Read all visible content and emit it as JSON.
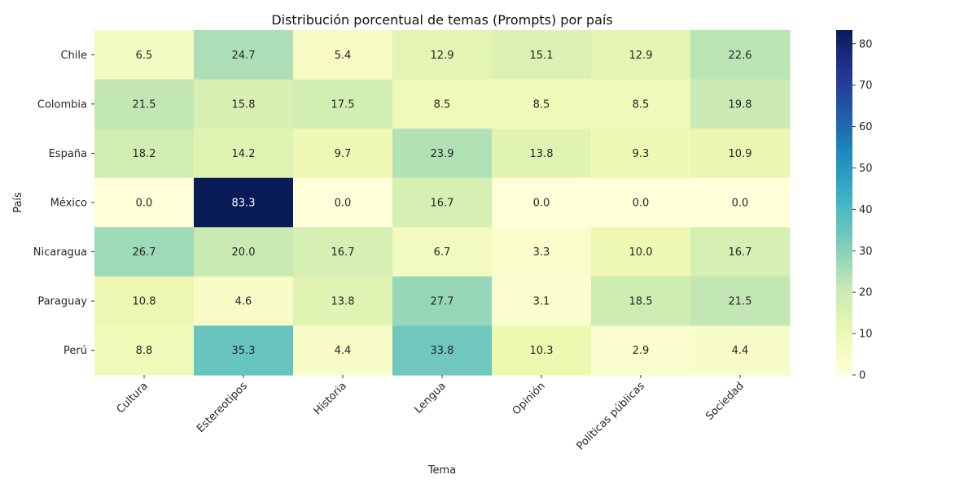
{
  "chart_data": {
    "type": "heatmap",
    "title": "Distribución porcentual de temas (Prompts) por país",
    "xlabel": "Tema",
    "ylabel": "País",
    "columns": [
      "Cultura",
      "Estereotipos",
      "Historia",
      "Lengua",
      "Opinión",
      "Políticas públicas",
      "Sociedad"
    ],
    "rows": [
      "Chile",
      "Colombia",
      "España",
      "México",
      "Nicaragua",
      "Paraguay",
      "Perú"
    ],
    "values": [
      [
        6.5,
        24.7,
        5.4,
        12.9,
        15.1,
        12.9,
        22.6
      ],
      [
        21.5,
        15.8,
        17.5,
        8.5,
        8.5,
        8.5,
        19.8
      ],
      [
        18.2,
        14.2,
        9.7,
        23.9,
        13.8,
        9.3,
        10.9
      ],
      [
        0.0,
        83.3,
        0.0,
        16.7,
        0.0,
        0.0,
        0.0
      ],
      [
        26.7,
        20.0,
        16.7,
        6.7,
        3.3,
        10.0,
        16.7
      ],
      [
        10.8,
        4.6,
        13.8,
        27.7,
        3.1,
        18.5,
        21.5
      ],
      [
        8.8,
        35.3,
        4.4,
        33.8,
        10.3,
        2.9,
        4.4
      ]
    ],
    "colormap": "YlGnBu",
    "vmin": 0,
    "vmax": 83.3,
    "colorbar_ticks": [
      0,
      10,
      20,
      30,
      40,
      50,
      60,
      70,
      80
    ],
    "annotation_decimals": 1,
    "grid": false
  }
}
